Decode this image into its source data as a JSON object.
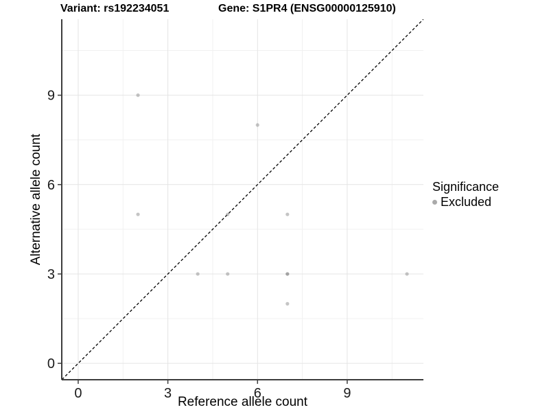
{
  "title": {
    "variant": "Variant: rs192234051",
    "gene": "Gene: S1PR4 (ENSG00000125910)"
  },
  "axes": {
    "x": {
      "label": "Reference allele count",
      "ticks": [
        0,
        3,
        6,
        9
      ],
      "minor_ticks": [
        1.5,
        4.5,
        7.5,
        10.5
      ],
      "range": [
        -0.55,
        11.55
      ]
    },
    "y": {
      "label": "Alternative allele count",
      "ticks": [
        0,
        3,
        6,
        9
      ],
      "minor_ticks": [
        1.5,
        4.5,
        7.5,
        10.5
      ],
      "range": [
        -0.55,
        11.55
      ]
    }
  },
  "legend": {
    "title": "Significance",
    "items": [
      {
        "label": "Excluded",
        "color": "#aaaaaa"
      }
    ]
  },
  "chart_data": {
    "type": "scatter",
    "title": "Variant: rs192234051  |  Gene: S1PR4 (ENSG00000125910)",
    "xlabel": "Reference allele count",
    "ylabel": "Alternative allele count",
    "xlim": [
      -0.55,
      11.55
    ],
    "ylim": [
      -0.55,
      11.55
    ],
    "grid": true,
    "legend_position": "right",
    "series": [
      {
        "name": "Excluded",
        "points": [
          [
            2,
            9
          ],
          [
            6,
            8
          ],
          [
            2,
            5
          ],
          [
            5,
            5
          ],
          [
            7,
            5
          ],
          [
            4,
            3
          ],
          [
            5,
            3
          ],
          [
            7,
            3
          ],
          [
            7,
            3
          ],
          [
            11,
            3
          ],
          [
            7,
            2
          ]
        ]
      }
    ],
    "reference_line": {
      "type": "identity",
      "style": "dashed",
      "from": [
        -1,
        -1
      ],
      "to": [
        13,
        13
      ]
    }
  },
  "style": {
    "point_color": "#7f7f7f",
    "point_opacity": 0.45,
    "point_radius": 2.6,
    "major_grid": "#e4e4e4",
    "minor_grid": "#f1f1f1",
    "axis_color": "#3c3c3c",
    "tick_text_color": "#1a1a1a",
    "ref_line_color": "#000000"
  }
}
